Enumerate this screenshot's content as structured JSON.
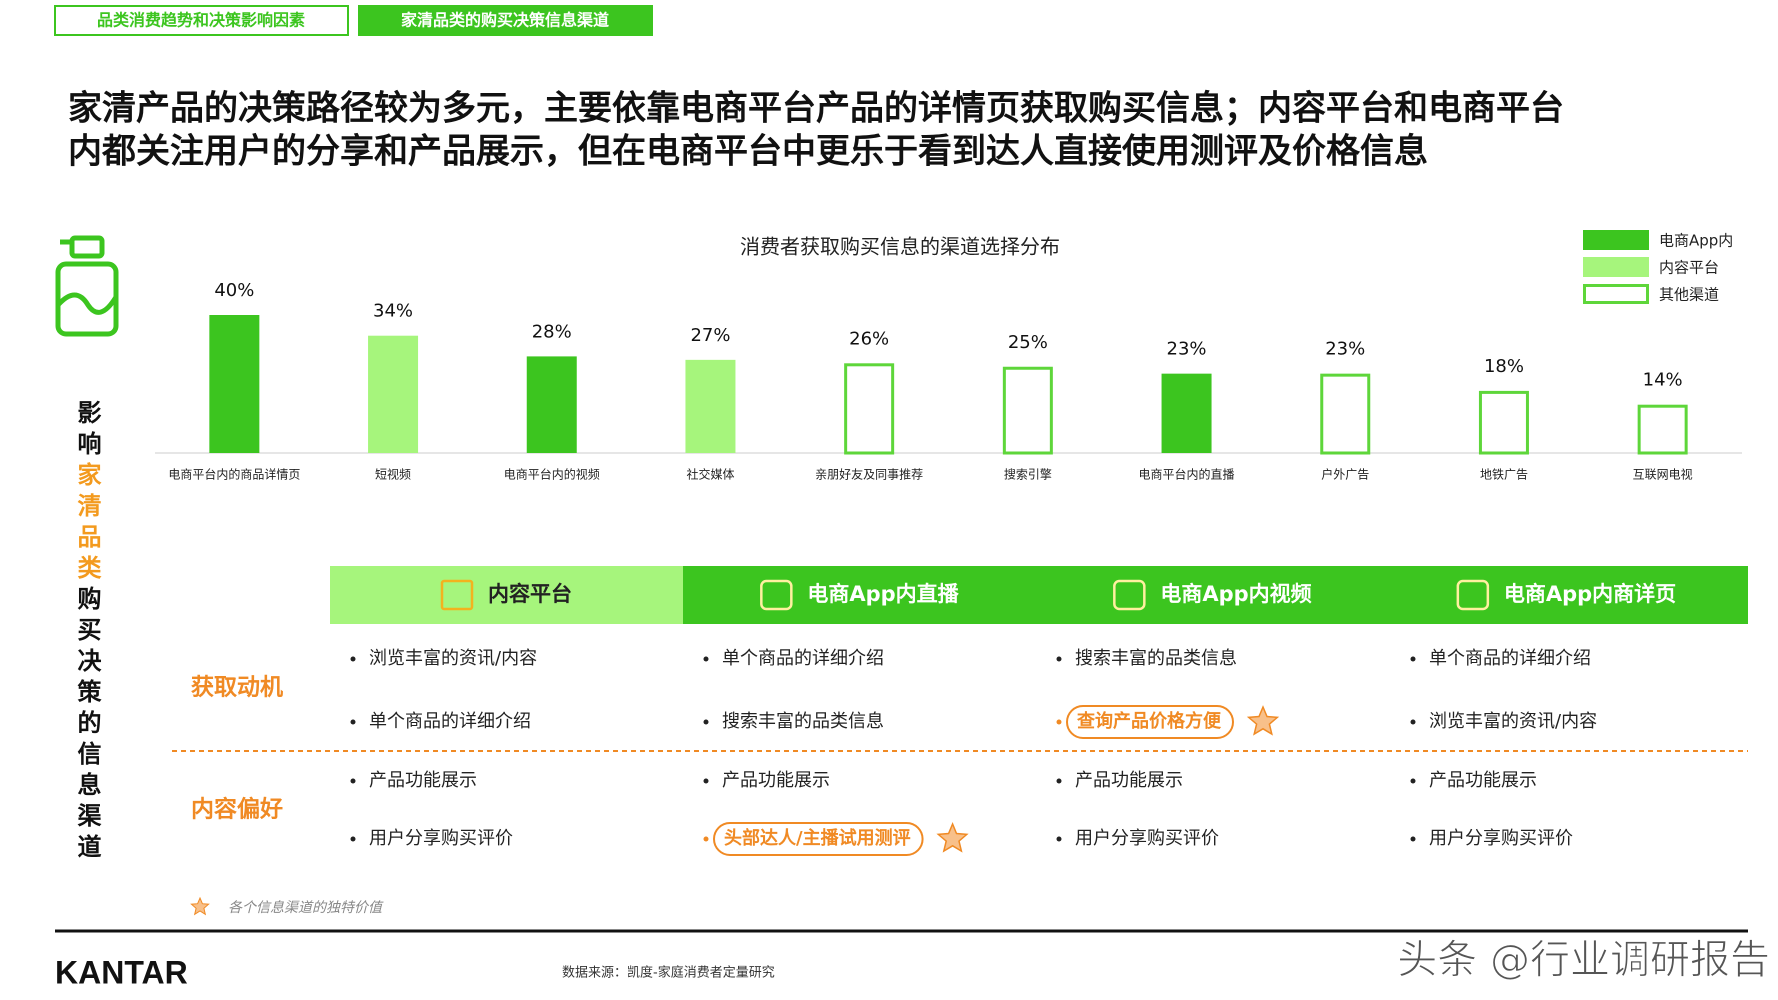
{
  "tabs": [
    "品类消费趋势和决策影响因素",
    "家清品类的购买决策信息渠道"
  ],
  "headline": [
    "家清产品的决策路径较为多元，主要依靠电商平台产品的详情页获取购买信息；内容平台和电商平台",
    "内都关注用户的分享和产品展示，但在电商平台中更乐于看到达人直接使用测评及价格信息"
  ],
  "side_title": [
    "影响",
    "家清品类",
    "购买决策的信息渠道"
  ],
  "chart_data": {
    "type": "bar",
    "title": "消费者获取购买信息的渠道选择分布",
    "categories": [
      "电商平台内的商品详情页",
      "短视频",
      "电商平台内的视频",
      "社交媒体",
      "亲朋好友及同事推荐",
      "搜索引擎",
      "电商平台内的直播",
      "户外广告",
      "地铁广告",
      "互联网电视"
    ],
    "series": [
      {
        "name": "电商App内",
        "color": "#3cc51f",
        "fill": "solid",
        "values": [
          40,
          null,
          28,
          null,
          null,
          null,
          23,
          null,
          null,
          null
        ],
        "value_labels": [
          "40%",
          null,
          "28%",
          null,
          null,
          null,
          "23%",
          null,
          null,
          null
        ]
      },
      {
        "name": "内容平台",
        "color": "#a6f57c",
        "fill": "solid",
        "values": [
          null,
          34,
          null,
          27,
          null,
          null,
          null,
          null,
          null,
          null
        ],
        "value_labels": [
          null,
          "34%",
          null,
          "27%",
          null,
          null,
          null,
          null,
          null,
          null
        ]
      },
      {
        "name": "其他渠道",
        "color": "#5ed63a",
        "fill": "outline",
        "values": [
          null,
          null,
          null,
          null,
          26,
          25,
          null,
          23,
          18,
          14
        ],
        "value_labels": [
          null,
          null,
          null,
          null,
          "26%",
          "25%",
          null,
          "23%",
          "18%",
          "14%"
        ]
      }
    ],
    "legend": "top-right"
  },
  "table": {
    "columns": [
      "内容平台",
      "电商App内直播",
      "电商App内视频",
      "电商App内商详页"
    ],
    "rows": [
      {
        "label": "获取动机",
        "cells": [
          [
            "浏览丰富的资讯/内容",
            "单个商品的详细介绍"
          ],
          [
            "单个商品的详细介绍",
            "搜索丰富的品类信息"
          ],
          [
            "搜索丰富的品类信息",
            {
              "text": "查询产品价格方便",
              "highlight": true
            }
          ],
          [
            "单个商品的详细介绍",
            "浏览丰富的资讯/内容"
          ]
        ]
      },
      {
        "label": "内容偏好",
        "cells": [
          [
            "产品功能展示",
            "用户分享购买评价"
          ],
          [
            "产品功能展示",
            {
              "text": "头部达人/主播试用测评",
              "highlight": true
            }
          ],
          [
            "产品功能展示",
            "用户分享购买评价"
          ],
          [
            "产品功能展示",
            "用户分享购买评价"
          ]
        ]
      }
    ]
  },
  "footnote": "各个信息渠道的独特价值",
  "logo": "KANTAR",
  "source": "数据来源：凯度-家庭消费者定量研究",
  "watermark": "头条 @行业调研报告"
}
